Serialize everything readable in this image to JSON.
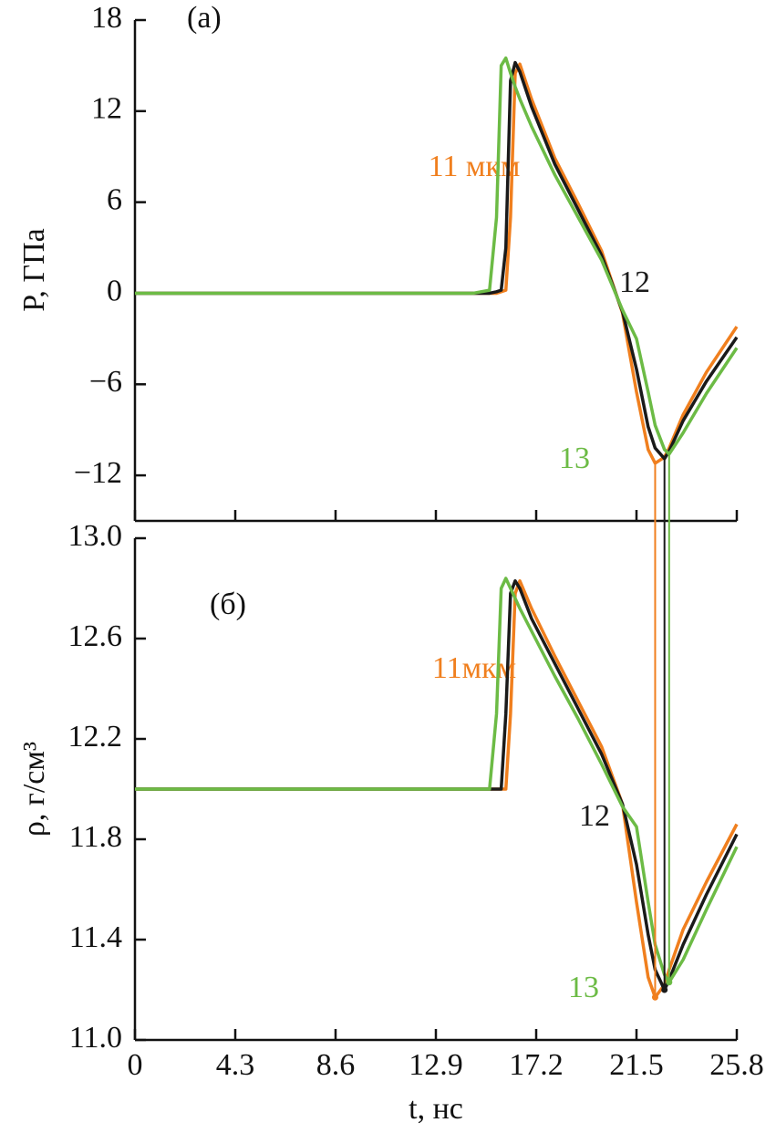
{
  "chart_data": [
    {
      "type": "line",
      "panel_label": "(a)",
      "ylabel": "P, ГПа",
      "xlim": [
        0,
        25.8
      ],
      "xticks": [
        0,
        4.3,
        8.6,
        12.9,
        17.2,
        21.5,
        25.8
      ],
      "ylim": [
        -15,
        18
      ],
      "yticks": [
        18,
        12,
        6,
        0,
        {
          "value": -6,
          "label": "−6"
        },
        {
          "value": -12,
          "label": "−12"
        }
      ],
      "x": [
        0,
        14.5,
        15.2,
        15.5,
        15.7,
        15.9,
        16.1,
        16.3,
        16.5,
        17,
        18,
        19,
        20,
        20.9,
        21.5,
        22,
        22.3,
        22.7,
        22.9,
        23.5,
        24.5,
        25.8
      ],
      "series": [
        {
          "name": "11 мкм",
          "color": "#f07f1e",
          "values": [
            0,
            0,
            0,
            0,
            0.1,
            0.2,
            5,
            14.5,
            15.1,
            12.8,
            8.9,
            5.9,
            2.8,
            -1.3,
            -6.5,
            -10.3,
            -11.2,
            -10.8,
            -10.2,
            -8.0,
            -5.2,
            -2.2
          ]
        },
        {
          "name": "12",
          "color": "#1a1a1a",
          "values": [
            0,
            0,
            0,
            0.1,
            0.2,
            3,
            14,
            15.2,
            14.6,
            12.3,
            8.5,
            5.5,
            2.5,
            -1.2,
            -5,
            -8.8,
            -10.2,
            -10.9,
            -10.4,
            -8.4,
            -5.8,
            -2.9
          ]
        },
        {
          "name": "13",
          "color": "#6cbb45",
          "values": [
            0,
            0,
            0.2,
            5,
            15,
            15.5,
            14.5,
            13.6,
            12.8,
            11,
            7.8,
            5,
            2.2,
            -1.1,
            -3,
            -6.5,
            -8.7,
            -10.3,
            -10.6,
            -9.2,
            -6.6,
            -3.6
          ]
        }
      ]
    },
    {
      "type": "line",
      "panel_label": "(б)",
      "ylabel": "ρ, г/см³",
      "xlabel": "t, нс",
      "xlim": [
        0,
        25.8
      ],
      "xticks": [
        0,
        4.3,
        8.6,
        12.9,
        17.2,
        21.5,
        25.8
      ],
      "ylim": [
        11,
        13
      ],
      "yticks": [
        {
          "value": 13,
          "label": "13.0"
        },
        12.6,
        12.2,
        11.8,
        11.4,
        {
          "value": 11,
          "label": "11.0"
        }
      ],
      "x": [
        0,
        14.5,
        15.2,
        15.5,
        15.7,
        15.9,
        16.1,
        16.3,
        16.5,
        17,
        18,
        19,
        20,
        20.9,
        21.5,
        22,
        22.3,
        22.7,
        22.9,
        23.5,
        24.5,
        25.8
      ],
      "series": [
        {
          "name": "11мкм",
          "color": "#f07f1e",
          "values": [
            12,
            12,
            12,
            12,
            12.0,
            12.0,
            12.3,
            12.78,
            12.83,
            12.72,
            12.53,
            12.35,
            12.17,
            11.94,
            11.55,
            11.25,
            11.17,
            11.22,
            11.28,
            11.44,
            11.63,
            11.86
          ]
        },
        {
          "name": "12",
          "color": "#1a1a1a",
          "values": [
            12,
            12,
            12,
            12.0,
            12.0,
            12.3,
            12.78,
            12.83,
            12.8,
            12.68,
            12.5,
            12.32,
            12.14,
            11.94,
            11.7,
            11.42,
            11.28,
            11.2,
            11.24,
            11.38,
            11.58,
            11.82
          ]
        },
        {
          "name": "13",
          "color": "#6cbb45",
          "values": [
            12,
            12,
            12,
            12.3,
            12.8,
            12.84,
            12.8,
            12.76,
            12.72,
            12.63,
            12.45,
            12.28,
            12.1,
            11.93,
            11.85,
            11.55,
            11.38,
            11.26,
            11.23,
            11.32,
            11.52,
            11.77
          ]
        }
      ]
    }
  ]
}
